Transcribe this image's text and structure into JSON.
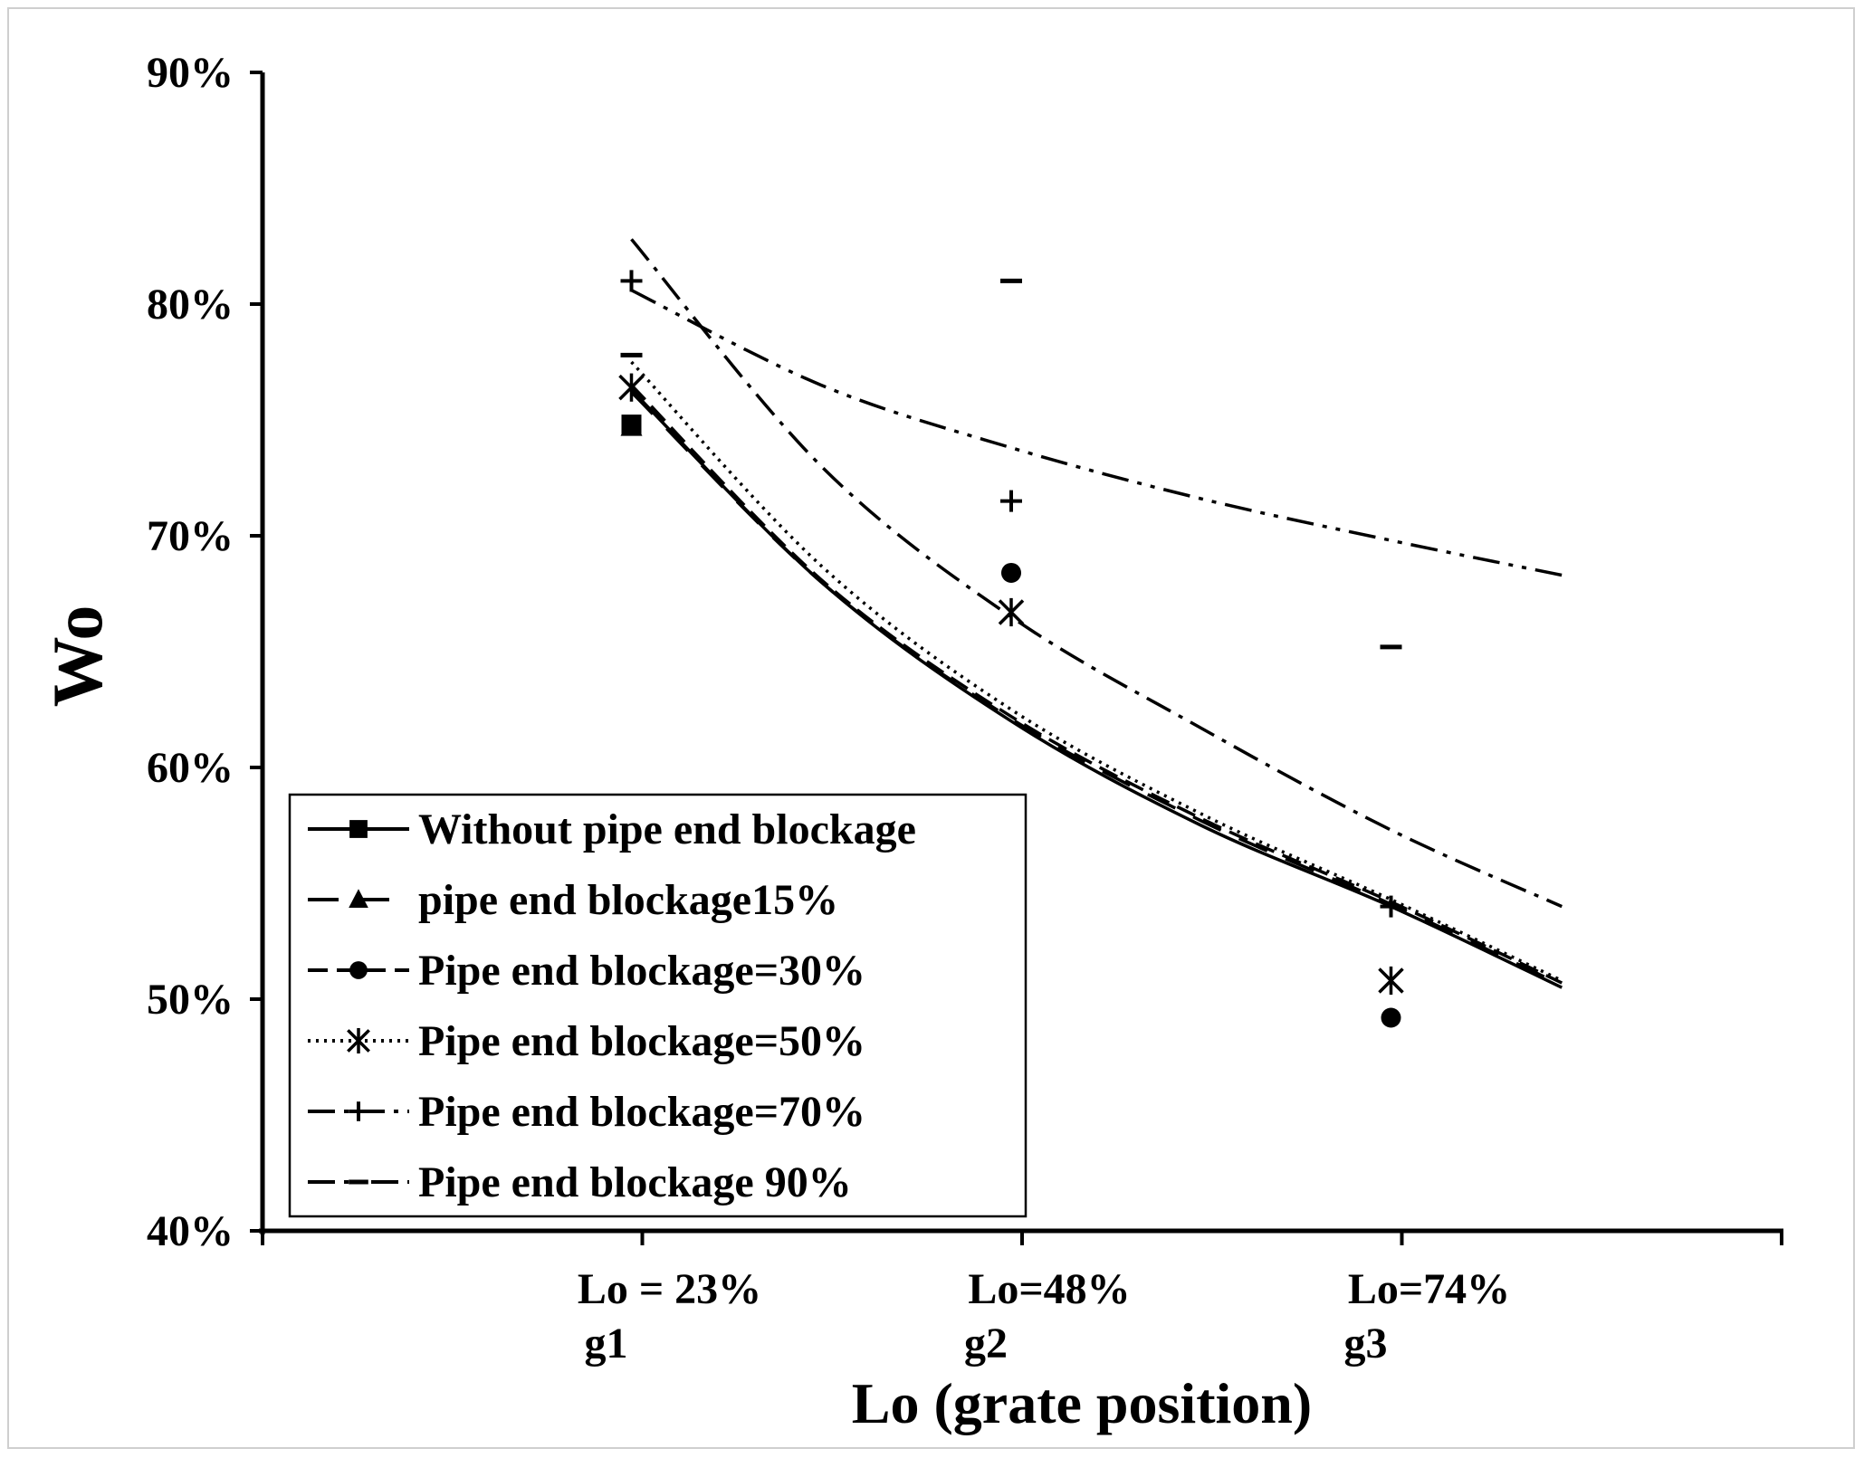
{
  "chart_data": {
    "type": "line",
    "title": "",
    "xlabel": "Lo (grate position)",
    "ylabel": "Wo",
    "ylim": [
      0.4,
      0.9
    ],
    "ytick_values": [
      0.4,
      0.5,
      0.6,
      0.7,
      0.8,
      0.9
    ],
    "ytick_labels": [
      "40%",
      "50%",
      "60%",
      "70%",
      "80%",
      "90%"
    ],
    "xlim": [
      0,
      4
    ],
    "categories": [
      {
        "x": 1,
        "line1": "Lo = 23%",
        "line2": "g1"
      },
      {
        "x": 2,
        "line1": "Lo=48%",
        "line2": "g2"
      },
      {
        "x": 3,
        "line1": "Lo=74%",
        "line2": "g3"
      }
    ],
    "grid": false,
    "legend_position": "bottom-left",
    "series": [
      {
        "name": "Without pipe end blockage",
        "marker": "square",
        "dash": "solid",
        "points": [
          [
            1,
            0.748
          ]
        ],
        "trend": [
          [
            1,
            0.763
          ],
          [
            1.5,
            0.68
          ],
          [
            2,
            0.62
          ],
          [
            2.5,
            0.575
          ],
          [
            3,
            0.54
          ],
          [
            3.45,
            0.505
          ]
        ]
      },
      {
        "name": "pipe end blockage15%",
        "marker": "triangle",
        "dash": "long-dash",
        "points": [
          [
            1,
            0.747
          ]
        ],
        "trend": [
          [
            1,
            0.762
          ],
          [
            1.5,
            0.68
          ],
          [
            2,
            0.621
          ],
          [
            2.5,
            0.577
          ],
          [
            3,
            0.541
          ],
          [
            3.45,
            0.506
          ]
        ]
      },
      {
        "name": "Pipe end blockage=30%",
        "marker": "circle",
        "dash": "dash",
        "points": [
          [
            2,
            0.684
          ],
          [
            3,
            0.492
          ]
        ],
        "trend": [
          [
            1,
            0.765
          ],
          [
            1.5,
            0.681
          ],
          [
            2,
            0.622
          ],
          [
            2.5,
            0.578
          ],
          [
            3,
            0.542
          ],
          [
            3.45,
            0.507
          ]
        ]
      },
      {
        "name": "Pipe end blockage=50%",
        "marker": "asterisk",
        "dash": "dot",
        "points": [
          [
            1,
            0.764
          ],
          [
            2,
            0.667
          ],
          [
            3,
            0.508
          ]
        ],
        "trend": [
          [
            1,
            0.775
          ],
          [
            1.5,
            0.687
          ],
          [
            2,
            0.625
          ],
          [
            2.5,
            0.58
          ],
          [
            3,
            0.543
          ],
          [
            3.45,
            0.508
          ]
        ]
      },
      {
        "name": "Pipe end blockage=70%",
        "marker": "plus",
        "dash": "dash-dot",
        "points": [
          [
            1,
            0.81
          ],
          [
            2,
            0.715
          ],
          [
            3,
            0.54
          ]
        ],
        "trend": [
          [
            1,
            0.828
          ],
          [
            1.5,
            0.73
          ],
          [
            2,
            0.665
          ],
          [
            2.5,
            0.617
          ],
          [
            3,
            0.573
          ],
          [
            3.45,
            0.54
          ]
        ]
      },
      {
        "name": "Pipe end blockage 90%",
        "marker": "dash",
        "dash": "dash-dot-dot",
        "points": [
          [
            1,
            0.778
          ],
          [
            2,
            0.81
          ],
          [
            3,
            0.652
          ]
        ],
        "trend": [
          [
            1,
            0.806
          ],
          [
            1.5,
            0.765
          ],
          [
            2,
            0.738
          ],
          [
            2.5,
            0.716
          ],
          [
            3,
            0.698
          ],
          [
            3.45,
            0.683
          ]
        ]
      }
    ]
  }
}
